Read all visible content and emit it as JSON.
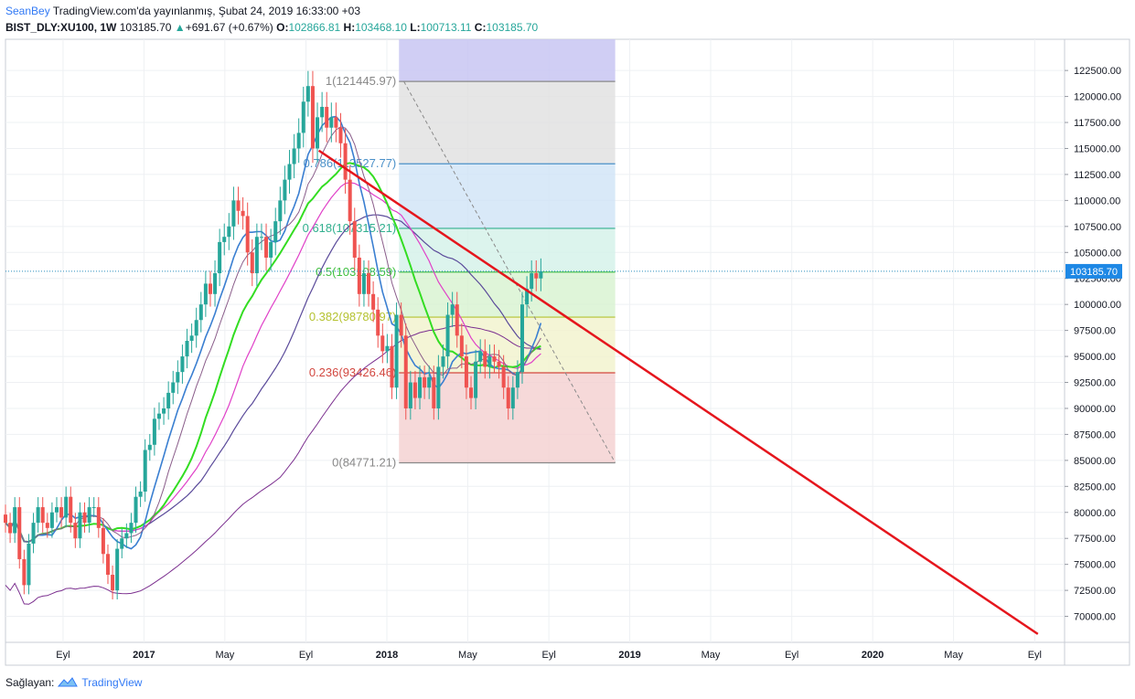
{
  "header": {
    "author": "SeanBey",
    "published": "TradingView.com'da yayınlanmış, Şubat 24, 2019 16:33:00 +03",
    "symbol": "BIST_DLY:XU100, 1W",
    "last": "103185.70",
    "change": "+691.67 (+0.67%)",
    "o_label": "O:",
    "o_value": "102866.81",
    "h_label": "H:",
    "h_value": "103468.10",
    "l_label": "L:",
    "l_value": "100713.11",
    "c_label": "C:",
    "c_value": "103185.70"
  },
  "footer": {
    "provided_by": "Sağlayan:",
    "brand": "TradingView"
  },
  "colors": {
    "up": "#26a69a",
    "down": "#ef5350",
    "trendline": "#e5161d",
    "price_label": "#1e88e5"
  },
  "chart_data": {
    "type": "candlestick",
    "y_ticks": [
      "122500.00",
      "120000.00",
      "117500.00",
      "115000.00",
      "112500.00",
      "110000.00",
      "107500.00",
      "105000.00",
      "102500.00",
      "100000.00",
      "97500.00",
      "95000.00",
      "92500.00",
      "90000.00",
      "87500.00",
      "85000.00",
      "82500.00",
      "80000.00",
      "77500.00",
      "75000.00",
      "72500.00",
      "70000.00"
    ],
    "ylim": [
      67500,
      125500
    ],
    "x_ticks": [
      {
        "label": "Eyl",
        "t": 2016.667
      },
      {
        "label": "2017",
        "t": 2017.0
      },
      {
        "label": "May",
        "t": 2017.333
      },
      {
        "label": "Eyl",
        "t": 2017.667
      },
      {
        "label": "2018",
        "t": 2018.0
      },
      {
        "label": "May",
        "t": 2018.333
      },
      {
        "label": "Eyl",
        "t": 2018.667
      },
      {
        "label": "2019",
        "t": 2019.0
      },
      {
        "label": "May",
        "t": 2019.333
      },
      {
        "label": "Eyl",
        "t": 2019.667
      },
      {
        "label": "2020",
        "t": 2020.0
      },
      {
        "label": "May",
        "t": 2020.333
      },
      {
        "label": "Eyl",
        "t": 2020.667
      }
    ],
    "current_price_label": "103185.70",
    "fib_levels": [
      {
        "label": "1(121445.97)",
        "value": 121445.97
      },
      {
        "label": "0.786(113527.77)",
        "value": 113527.77
      },
      {
        "label": "0.618(107315.21)",
        "value": 107315.21
      },
      {
        "label": "0.5(103108.59)",
        "value": 103108.59
      },
      {
        "label": "0.382(98780.97)",
        "value": 98780.97
      },
      {
        "label": "0.236(93426.46)",
        "value": 93426.46
      },
      {
        "label": "0(84771.21)",
        "value": 84771.21
      }
    ],
    "closes": [
      79000,
      78000,
      80500,
      75500,
      73000,
      77000,
      79000,
      80500,
      79000,
      78500,
      80000,
      80500,
      79500,
      81500,
      79000,
      77500,
      80000,
      79000,
      80500,
      80500,
      78500,
      76000,
      74000,
      72500,
      76500,
      77500,
      78000,
      79000,
      81500,
      82000,
      86000,
      86500,
      89000,
      89500,
      90000,
      91500,
      92500,
      93500,
      95000,
      96500,
      97000,
      98500,
      100000,
      102000,
      101000,
      103000,
      106000,
      106500,
      107500,
      110000,
      109000,
      108500,
      105000,
      103000,
      106500,
      106500,
      104500,
      106000,
      108000,
      110000,
      112000,
      113500,
      115000,
      116500,
      119500,
      121000,
      115000,
      118000,
      119000,
      117000,
      118000,
      117000,
      115500,
      112000,
      108000,
      104500,
      101000,
      103000,
      101000,
      99500,
      97000,
      95500,
      96000,
      92000,
      99000,
      97000,
      90000,
      92500,
      91000,
      93000,
      92000,
      93000,
      90000,
      94000,
      95000,
      99000,
      100000,
      97000,
      95000,
      92000,
      91000,
      94500,
      95500,
      94000,
      95000,
      94500,
      94000,
      92000,
      90000,
      92000,
      93500,
      100000,
      101500,
      103000,
      102500,
      103185.7
    ],
    "start_t": 2016.43,
    "week": 0.019165,
    "trendline": {
      "from": [
        2017.72,
        114800
      ],
      "to": [
        2020.68,
        68300
      ]
    }
  }
}
